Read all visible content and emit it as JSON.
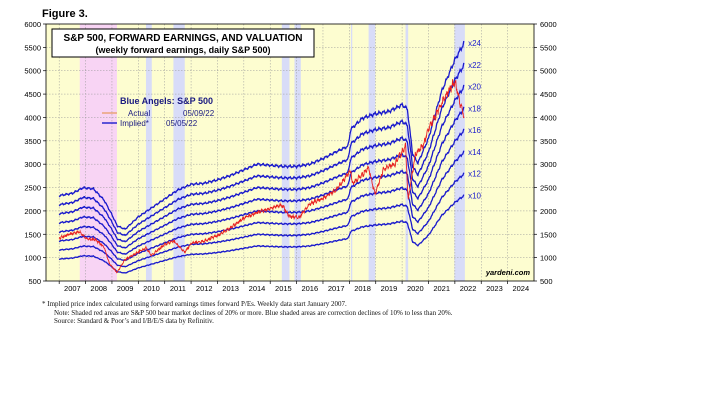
{
  "figure_label": "Figure 3.",
  "chart_data": {
    "type": "line",
    "title": "S&P 500, FORWARD EARNINGS, AND VALUATION",
    "subtitle": "(weekly forward earnings, daily S&P 500)",
    "ylim": [
      500,
      6000
    ],
    "y_ticks": [
      "500",
      "1000",
      "1500",
      "2000",
      "2500",
      "3000",
      "3500",
      "4000",
      "4500",
      "5000",
      "5500",
      "6000"
    ],
    "x_range": [
      2006.5,
      2025.0
    ],
    "x_ticks": [
      "2007",
      "2008",
      "2009",
      "2010",
      "2011",
      "2012",
      "2013",
      "2014",
      "2015",
      "2016",
      "2017",
      "2018",
      "2019",
      "2020",
      "2021",
      "2022",
      "2023",
      "2024"
    ],
    "grid": true,
    "legend_title": "Blue Angels: S&P 500",
    "legend": [
      {
        "name": "Actual",
        "date": "05/09/22",
        "color": "#e8a070"
      },
      {
        "name": "Implied*",
        "date": "05/05/22",
        "color": "#1a1acc"
      }
    ],
    "watermark": "yardeni.com",
    "colors": {
      "background": "#fdfdd0",
      "bear_shade": "#f8d4f4",
      "correction_shade": "#d8dcf8",
      "implied": "#1a1acc",
      "actual": "#e82020"
    },
    "bear_markets": [
      [
        2007.78,
        2009.19
      ]
    ],
    "corrections": [
      [
        2010.29,
        2010.51
      ],
      [
        2011.33,
        2011.76
      ],
      [
        2015.44,
        2015.73
      ],
      [
        2015.92,
        2016.16
      ],
      [
        2018.06,
        2018.11
      ],
      [
        2018.73,
        2018.98
      ],
      [
        2020.13,
        2020.23
      ],
      [
        2021.98,
        2022.38
      ]
    ],
    "forward_earnings": {
      "x": [
        2007.0,
        2007.5,
        2007.9,
        2008.3,
        2008.7,
        2009.0,
        2009.2,
        2009.5,
        2010.0,
        2010.5,
        2011.0,
        2011.5,
        2012.0,
        2012.5,
        2013.0,
        2013.5,
        2014.0,
        2014.5,
        2015.0,
        2015.5,
        2016.0,
        2016.5,
        2017.0,
        2017.5,
        2017.95,
        2018.05,
        2018.5,
        2019.0,
        2019.5,
        2020.0,
        2020.2,
        2020.4,
        2020.6,
        2021.0,
        2021.5,
        2022.0,
        2022.35
      ],
      "values": [
        97,
        99,
        104,
        103,
        93,
        80,
        70,
        67,
        78,
        86,
        94,
        102,
        107,
        108,
        111,
        115,
        120,
        125,
        124,
        123,
        123,
        125,
        130,
        136,
        141,
        156,
        166,
        170,
        172,
        178,
        174,
        134,
        126,
        148,
        190,
        218,
        233
      ]
    },
    "series": [
      {
        "name": "x24",
        "multiple": 24
      },
      {
        "name": "x22",
        "multiple": 22
      },
      {
        "name": "x20",
        "multiple": 20
      },
      {
        "name": "x18",
        "multiple": 18
      },
      {
        "name": "x16",
        "multiple": 16
      },
      {
        "name": "x14",
        "multiple": 14
      },
      {
        "name": "x12",
        "multiple": 12
      },
      {
        "name": "x10",
        "multiple": 10
      }
    ],
    "actual": {
      "x": [
        2007.0,
        2007.4,
        2007.78,
        2008.0,
        2008.4,
        2008.7,
        2008.9,
        2009.19,
        2009.5,
        2010.0,
        2010.29,
        2010.5,
        2011.0,
        2011.33,
        2011.76,
        2012.0,
        2012.5,
        2013.0,
        2013.5,
        2014.0,
        2014.5,
        2015.0,
        2015.44,
        2015.73,
        2016.1,
        2016.5,
        2017.0,
        2017.5,
        2018.06,
        2018.11,
        2018.5,
        2018.73,
        2018.98,
        2019.3,
        2019.7,
        2020.13,
        2020.23,
        2020.5,
        2020.8,
        2021.0,
        2021.5,
        2022.0,
        2022.2,
        2022.36
      ],
      "values": [
        1420,
        1500,
        1560,
        1410,
        1380,
        1220,
        880,
        680,
        960,
        1120,
        1210,
        1050,
        1280,
        1360,
        1120,
        1300,
        1360,
        1470,
        1640,
        1840,
        1960,
        2060,
        2130,
        1880,
        1860,
        2150,
        2270,
        2450,
        2870,
        2580,
        2780,
        2930,
        2350,
        2900,
        2980,
        3390,
        2240,
        3200,
        3400,
        3740,
        4300,
        4790,
        4300,
        4000
      ]
    }
  },
  "footnote": {
    "line1": "*   Implied price index calculated using forward earnings times forward P/Es. Weekly data start January 2007.",
    "line2": "Note: Shaded red areas are S&P 500 bear market declines of 20% or more.  Blue shaded areas are correction declines of 10% to less than 20%.",
    "line3": "Source: Standard & Poor’s and I/B/E/S data by Refinitiv."
  }
}
